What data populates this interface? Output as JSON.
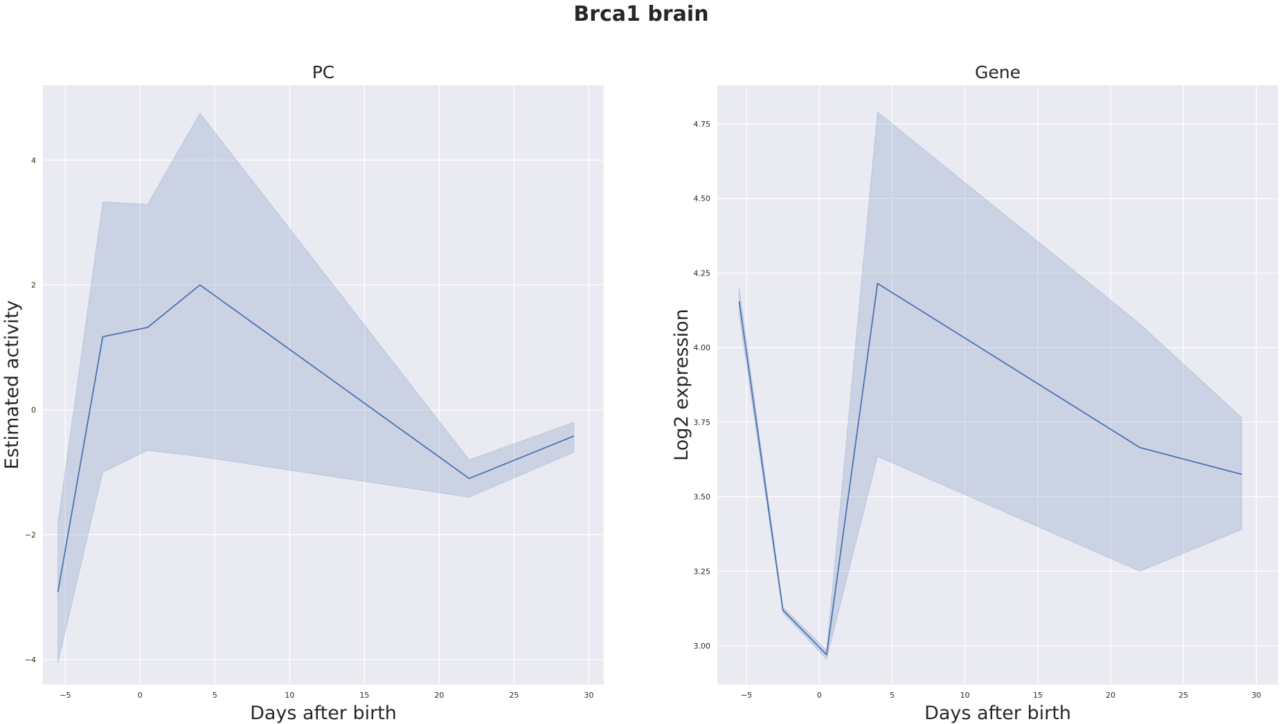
{
  "figure": {
    "suptitle": "Brca1 brain"
  },
  "chart_data": [
    {
      "type": "line",
      "title": "PC",
      "xlabel": "Days after birth",
      "ylabel": "Estimated activity",
      "xlim": [
        -6.5,
        31
      ],
      "ylim": [
        -4.4,
        5.2
      ],
      "xticks": [
        -5,
        0,
        5,
        10,
        15,
        20,
        25,
        30
      ],
      "xtick_labels": [
        "−5",
        "0",
        "5",
        "10",
        "15",
        "20",
        "25",
        "30"
      ],
      "yticks": [
        -4,
        -2,
        0,
        2,
        4
      ],
      "ytick_labels": [
        "−4",
        "−2",
        "0",
        "2",
        "4"
      ],
      "grid": true,
      "color": "#4c72b0",
      "series": [
        {
          "x": [
            -5.5,
            -2.5,
            0.5,
            4,
            22,
            29
          ],
          "y": [
            -2.92,
            1.17,
            1.32,
            2.0,
            -1.1,
            -0.42
          ],
          "ci_lower": [
            -4.05,
            -1.0,
            -0.65,
            -0.75,
            -1.4,
            -0.68
          ],
          "ci_upper": [
            -1.82,
            3.33,
            3.29,
            4.75,
            -0.8,
            -0.2
          ]
        }
      ]
    },
    {
      "type": "line",
      "title": "Gene",
      "xlabel": "Days after birth",
      "ylabel": "Log2 expression",
      "xlim": [
        -7,
        31.5
      ],
      "ylim": [
        2.87,
        4.88
      ],
      "xticks": [
        -5,
        0,
        5,
        10,
        15,
        20,
        25,
        30
      ],
      "xtick_labels": [
        "−5",
        "0",
        "5",
        "10",
        "15",
        "20",
        "25",
        "30"
      ],
      "yticks": [
        3.0,
        3.25,
        3.5,
        3.75,
        4.0,
        4.25,
        4.5,
        4.75
      ],
      "ytick_labels": [
        "3.00",
        "3.25",
        "3.50",
        "3.75",
        "4.00",
        "4.25",
        "4.50",
        "4.75"
      ],
      "grid": true,
      "color": "#4c72b0",
      "series": [
        {
          "x": [
            -5.5,
            -2.5,
            0.5,
            4,
            22,
            29
          ],
          "y": [
            4.155,
            3.12,
            2.97,
            4.215,
            3.665,
            3.575
          ],
          "ci_lower": [
            4.11,
            3.11,
            2.955,
            3.635,
            3.25,
            3.39
          ],
          "ci_upper": [
            4.2,
            3.13,
            2.985,
            4.79,
            4.08,
            3.765
          ]
        }
      ]
    }
  ]
}
